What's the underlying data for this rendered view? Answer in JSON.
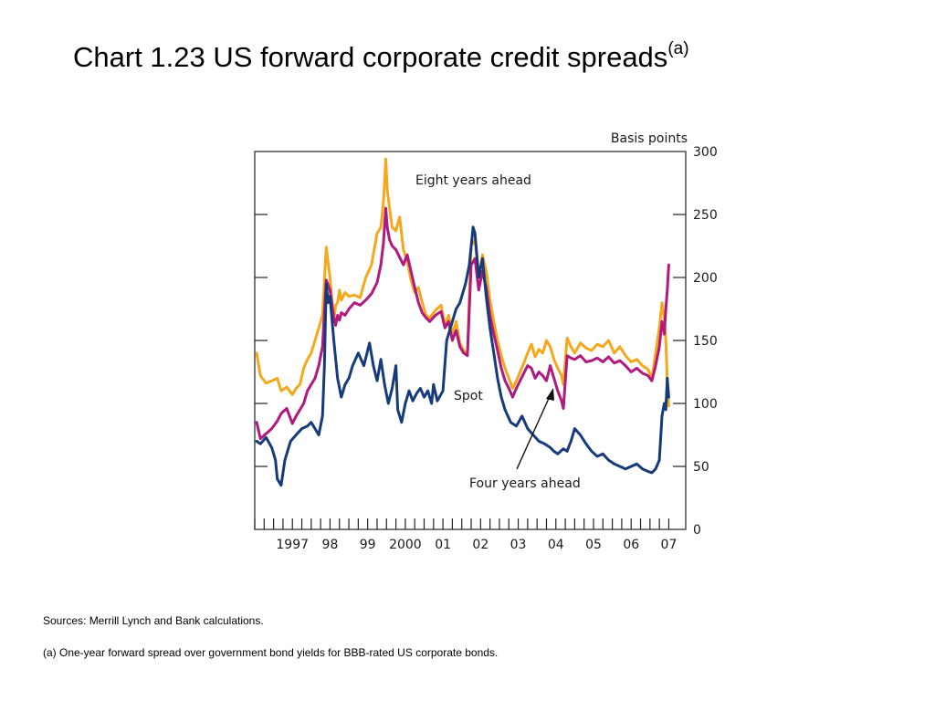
{
  "title": {
    "text": "Chart 1.23  US forward corporate credit spreads",
    "superscript": "(a)"
  },
  "sources": "Sources:  Merrill Lynch and Bank calculations.",
  "footnote": "(a)  One-year forward spread over government bond yields for BBB-rated US corporate bonds.",
  "chart_data": {
    "type": "line",
    "title": "Chart 1.23  US forward corporate credit spreads",
    "ylabel": "Basis points",
    "xlabel": "",
    "ylim": [
      0,
      300
    ],
    "yticks": [
      0,
      50,
      100,
      150,
      200,
      250,
      300
    ],
    "xlim": [
      1996.5,
      2007.95
    ],
    "year_ticks": [
      1996.5,
      1996.75,
      1997,
      1997.25,
      1997.5,
      1997.75,
      1998,
      1998.25,
      1998.5,
      1998.75,
      1999,
      1999.25,
      1999.5,
      1999.75,
      2000,
      2000.25,
      2000.5,
      2000.75,
      2001,
      2001.25,
      2001.5,
      2001.75,
      2002,
      2002.25,
      2002.5,
      2002.75,
      2003,
      2003.25,
      2003.5,
      2003.75,
      2004,
      2004.25,
      2004.5,
      2004.75,
      2005,
      2005.25,
      2005.5,
      2005.75,
      2006,
      2006.25,
      2006.5,
      2006.75,
      2007,
      2007.25,
      2007.5
    ],
    "x_labels": [
      {
        "label": "1997",
        "x": 1997.0
      },
      {
        "label": "98",
        "x": 1998.0
      },
      {
        "label": "99",
        "x": 1999.0
      },
      {
        "label": "2000",
        "x": 2000.0
      },
      {
        "label": "01",
        "x": 2001.0
      },
      {
        "label": "02",
        "x": 2002.0
      },
      {
        "label": "03",
        "x": 2003.0
      },
      {
        "label": "04",
        "x": 2004.0
      },
      {
        "label": "05",
        "x": 2005.0
      },
      {
        "label": "06",
        "x": 2006.0
      },
      {
        "label": "07",
        "x": 2007.0
      }
    ],
    "grid": false,
    "legend": "none (series labelled directly on chart)",
    "annotations": {
      "eight_years": "Eight years ahead",
      "spot": "Spot",
      "four_years": "Four years ahead",
      "unit": "Basis points"
    },
    "series": [
      {
        "name": "Eight years ahead",
        "color": "#f5a81c",
        "x": [
          1996.55,
          1996.65,
          1996.8,
          1996.95,
          1997.1,
          1997.2,
          1997.35,
          1997.5,
          1997.6,
          1997.7,
          1997.8,
          1997.9,
          1998.0,
          1998.1,
          1998.2,
          1998.3,
          1998.4,
          1998.5,
          1998.6,
          1998.65,
          1998.7,
          1998.75,
          1998.8,
          1998.9,
          1999.0,
          1999.15,
          1999.3,
          1999.45,
          1999.6,
          1999.75,
          1999.85,
          1999.92,
          1999.98,
          2000.02,
          2000.08,
          2000.15,
          2000.25,
          2000.35,
          2000.45,
          2000.55,
          2000.65,
          2000.75,
          2000.85,
          2000.95,
          2001.05,
          2001.15,
          2001.3,
          2001.45,
          2001.55,
          2001.65,
          2001.75,
          2001.85,
          2001.95,
          2002.05,
          2002.15,
          2002.25,
          2002.35,
          2002.45,
          2002.55,
          2002.65,
          2002.75,
          2002.85,
          2002.95,
          2003.05,
          2003.15,
          2003.25,
          2003.35,
          2003.45,
          2003.55,
          2003.65,
          2003.75,
          2003.85,
          2003.95,
          2004.05,
          2004.15,
          2004.25,
          2004.35,
          2004.45,
          2004.55,
          2004.65,
          2004.7,
          2004.8,
          2004.9,
          2005.0,
          2005.15,
          2005.3,
          2005.45,
          2005.6,
          2005.75,
          2005.9,
          2006.05,
          2006.2,
          2006.35,
          2006.5,
          2006.65,
          2006.8,
          2006.95,
          2007.05,
          2007.15,
          2007.25,
          2007.32,
          2007.38,
          2007.42,
          2007.46,
          2007.5
        ],
        "values": [
          140,
          122,
          116,
          118,
          120,
          110,
          113,
          107,
          112,
          115,
          128,
          135,
          140,
          150,
          160,
          170,
          224,
          200,
          165,
          178,
          180,
          190,
          182,
          188,
          185,
          186,
          184,
          200,
          210,
          235,
          240,
          260,
          294,
          270,
          255,
          240,
          237,
          248,
          222,
          213,
          198,
          188,
          192,
          180,
          170,
          168,
          174,
          178,
          162,
          170,
          155,
          165,
          148,
          142,
          140,
          225,
          230,
          200,
          218,
          205,
          182,
          165,
          150,
          138,
          128,
          120,
          112,
          118,
          125,
          132,
          140,
          147,
          137,
          143,
          140,
          150,
          145,
          135,
          128,
          122,
          115,
          152,
          145,
          140,
          148,
          144,
          142,
          147,
          145,
          150,
          140,
          145,
          138,
          133,
          135,
          130,
          127,
          120,
          140,
          160,
          180,
          168,
          150,
          118,
          98
        ]
      },
      {
        "name": "Four years ahead",
        "color": "#b0197e",
        "x": [
          1996.55,
          1996.65,
          1996.8,
          1996.95,
          1997.1,
          1997.2,
          1997.35,
          1997.5,
          1997.6,
          1997.7,
          1997.8,
          1997.9,
          1998.0,
          1998.1,
          1998.2,
          1998.3,
          1998.4,
          1998.5,
          1998.6,
          1998.65,
          1998.7,
          1998.75,
          1998.8,
          1998.9,
          1999.0,
          1999.15,
          1999.3,
          1999.45,
          1999.6,
          1999.75,
          1999.85,
          1999.92,
          1999.98,
          2000.02,
          2000.08,
          2000.15,
          2000.25,
          2000.35,
          2000.45,
          2000.55,
          2000.65,
          2000.75,
          2000.85,
          2000.95,
          2001.05,
          2001.15,
          2001.3,
          2001.45,
          2001.55,
          2001.65,
          2001.75,
          2001.85,
          2001.95,
          2002.05,
          2002.15,
          2002.25,
          2002.35,
          2002.45,
          2002.55,
          2002.65,
          2002.75,
          2002.85,
          2002.95,
          2003.05,
          2003.15,
          2003.25,
          2003.35,
          2003.45,
          2003.55,
          2003.65,
          2003.75,
          2003.85,
          2003.95,
          2004.05,
          2004.15,
          2004.25,
          2004.35,
          2004.45,
          2004.55,
          2004.65,
          2004.7,
          2004.8,
          2004.9,
          2005.0,
          2005.15,
          2005.3,
          2005.45,
          2005.6,
          2005.75,
          2005.9,
          2006.05,
          2006.2,
          2006.35,
          2006.5,
          2006.65,
          2006.8,
          2006.95,
          2007.05,
          2007.15,
          2007.25,
          2007.32,
          2007.38,
          2007.42,
          2007.46,
          2007.5
        ],
        "values": [
          85,
          72,
          76,
          80,
          86,
          92,
          96,
          84,
          90,
          95,
          100,
          110,
          115,
          120,
          130,
          145,
          198,
          190,
          168,
          162,
          170,
          166,
          172,
          170,
          175,
          180,
          178,
          182,
          187,
          196,
          210,
          228,
          255,
          240,
          230,
          225,
          222,
          216,
          210,
          218,
          205,
          192,
          180,
          172,
          168,
          165,
          170,
          173,
          160,
          165,
          150,
          158,
          145,
          140,
          138,
          210,
          215,
          190,
          205,
          192,
          170,
          155,
          142,
          128,
          118,
          112,
          105,
          112,
          118,
          124,
          130,
          128,
          120,
          125,
          122,
          118,
          130,
          120,
          110,
          102,
          96,
          138,
          136,
          135,
          138,
          133,
          134,
          136,
          133,
          137,
          132,
          134,
          130,
          125,
          128,
          124,
          122,
          118,
          130,
          145,
          165,
          155,
          175,
          190,
          210
        ]
      },
      {
        "name": "Spot",
        "color": "#173b7a",
        "x": [
          1996.55,
          1996.65,
          1996.8,
          1996.95,
          1997.05,
          1997.1,
          1997.2,
          1997.3,
          1997.45,
          1997.6,
          1997.75,
          1997.9,
          1998.0,
          1998.1,
          1998.2,
          1998.3,
          1998.35,
          1998.4,
          1998.45,
          1998.5,
          1998.6,
          1998.7,
          1998.8,
          1998.9,
          1999.0,
          1999.1,
          1999.25,
          1999.4,
          1999.55,
          1999.65,
          1999.75,
          1999.85,
          1999.95,
          2000.05,
          2000.15,
          2000.25,
          2000.3,
          2000.4,
          2000.5,
          2000.6,
          2000.7,
          2000.8,
          2000.9,
          2001.0,
          2001.1,
          2001.2,
          2001.25,
          2001.35,
          2001.5,
          2001.6,
          2001.75,
          2001.85,
          2001.95,
          2002.1,
          2002.2,
          2002.3,
          2002.35,
          2002.45,
          2002.55,
          2002.65,
          2002.75,
          2002.85,
          2002.95,
          2003.05,
          2003.15,
          2003.3,
          2003.45,
          2003.6,
          2003.75,
          2003.9,
          2004.05,
          2004.2,
          2004.35,
          2004.45,
          2004.55,
          2004.7,
          2004.8,
          2004.9,
          2005.0,
          2005.15,
          2005.3,
          2005.45,
          2005.6,
          2005.75,
          2005.9,
          2006.05,
          2006.2,
          2006.35,
          2006.5,
          2006.65,
          2006.8,
          2006.95,
          2007.05,
          2007.15,
          2007.25,
          2007.32,
          2007.38,
          2007.42,
          2007.46,
          2007.5
        ],
        "values": [
          70,
          68,
          73,
          65,
          55,
          40,
          35,
          55,
          70,
          75,
          80,
          82,
          85,
          80,
          75,
          90,
          130,
          195,
          180,
          185,
          150,
          120,
          105,
          115,
          120,
          130,
          140,
          130,
          148,
          130,
          118,
          135,
          115,
          100,
          112,
          130,
          95,
          85,
          100,
          110,
          102,
          108,
          112,
          105,
          110,
          100,
          115,
          102,
          110,
          150,
          165,
          175,
          180,
          195,
          210,
          240,
          235,
          200,
          215,
          185,
          160,
          140,
          120,
          105,
          95,
          85,
          82,
          90,
          80,
          75,
          70,
          68,
          65,
          62,
          60,
          64,
          62,
          70,
          80,
          75,
          68,
          62,
          58,
          60,
          55,
          52,
          50,
          48,
          50,
          52,
          48,
          46,
          45,
          48,
          55,
          90,
          100,
          95,
          120,
          105
        ]
      }
    ]
  }
}
